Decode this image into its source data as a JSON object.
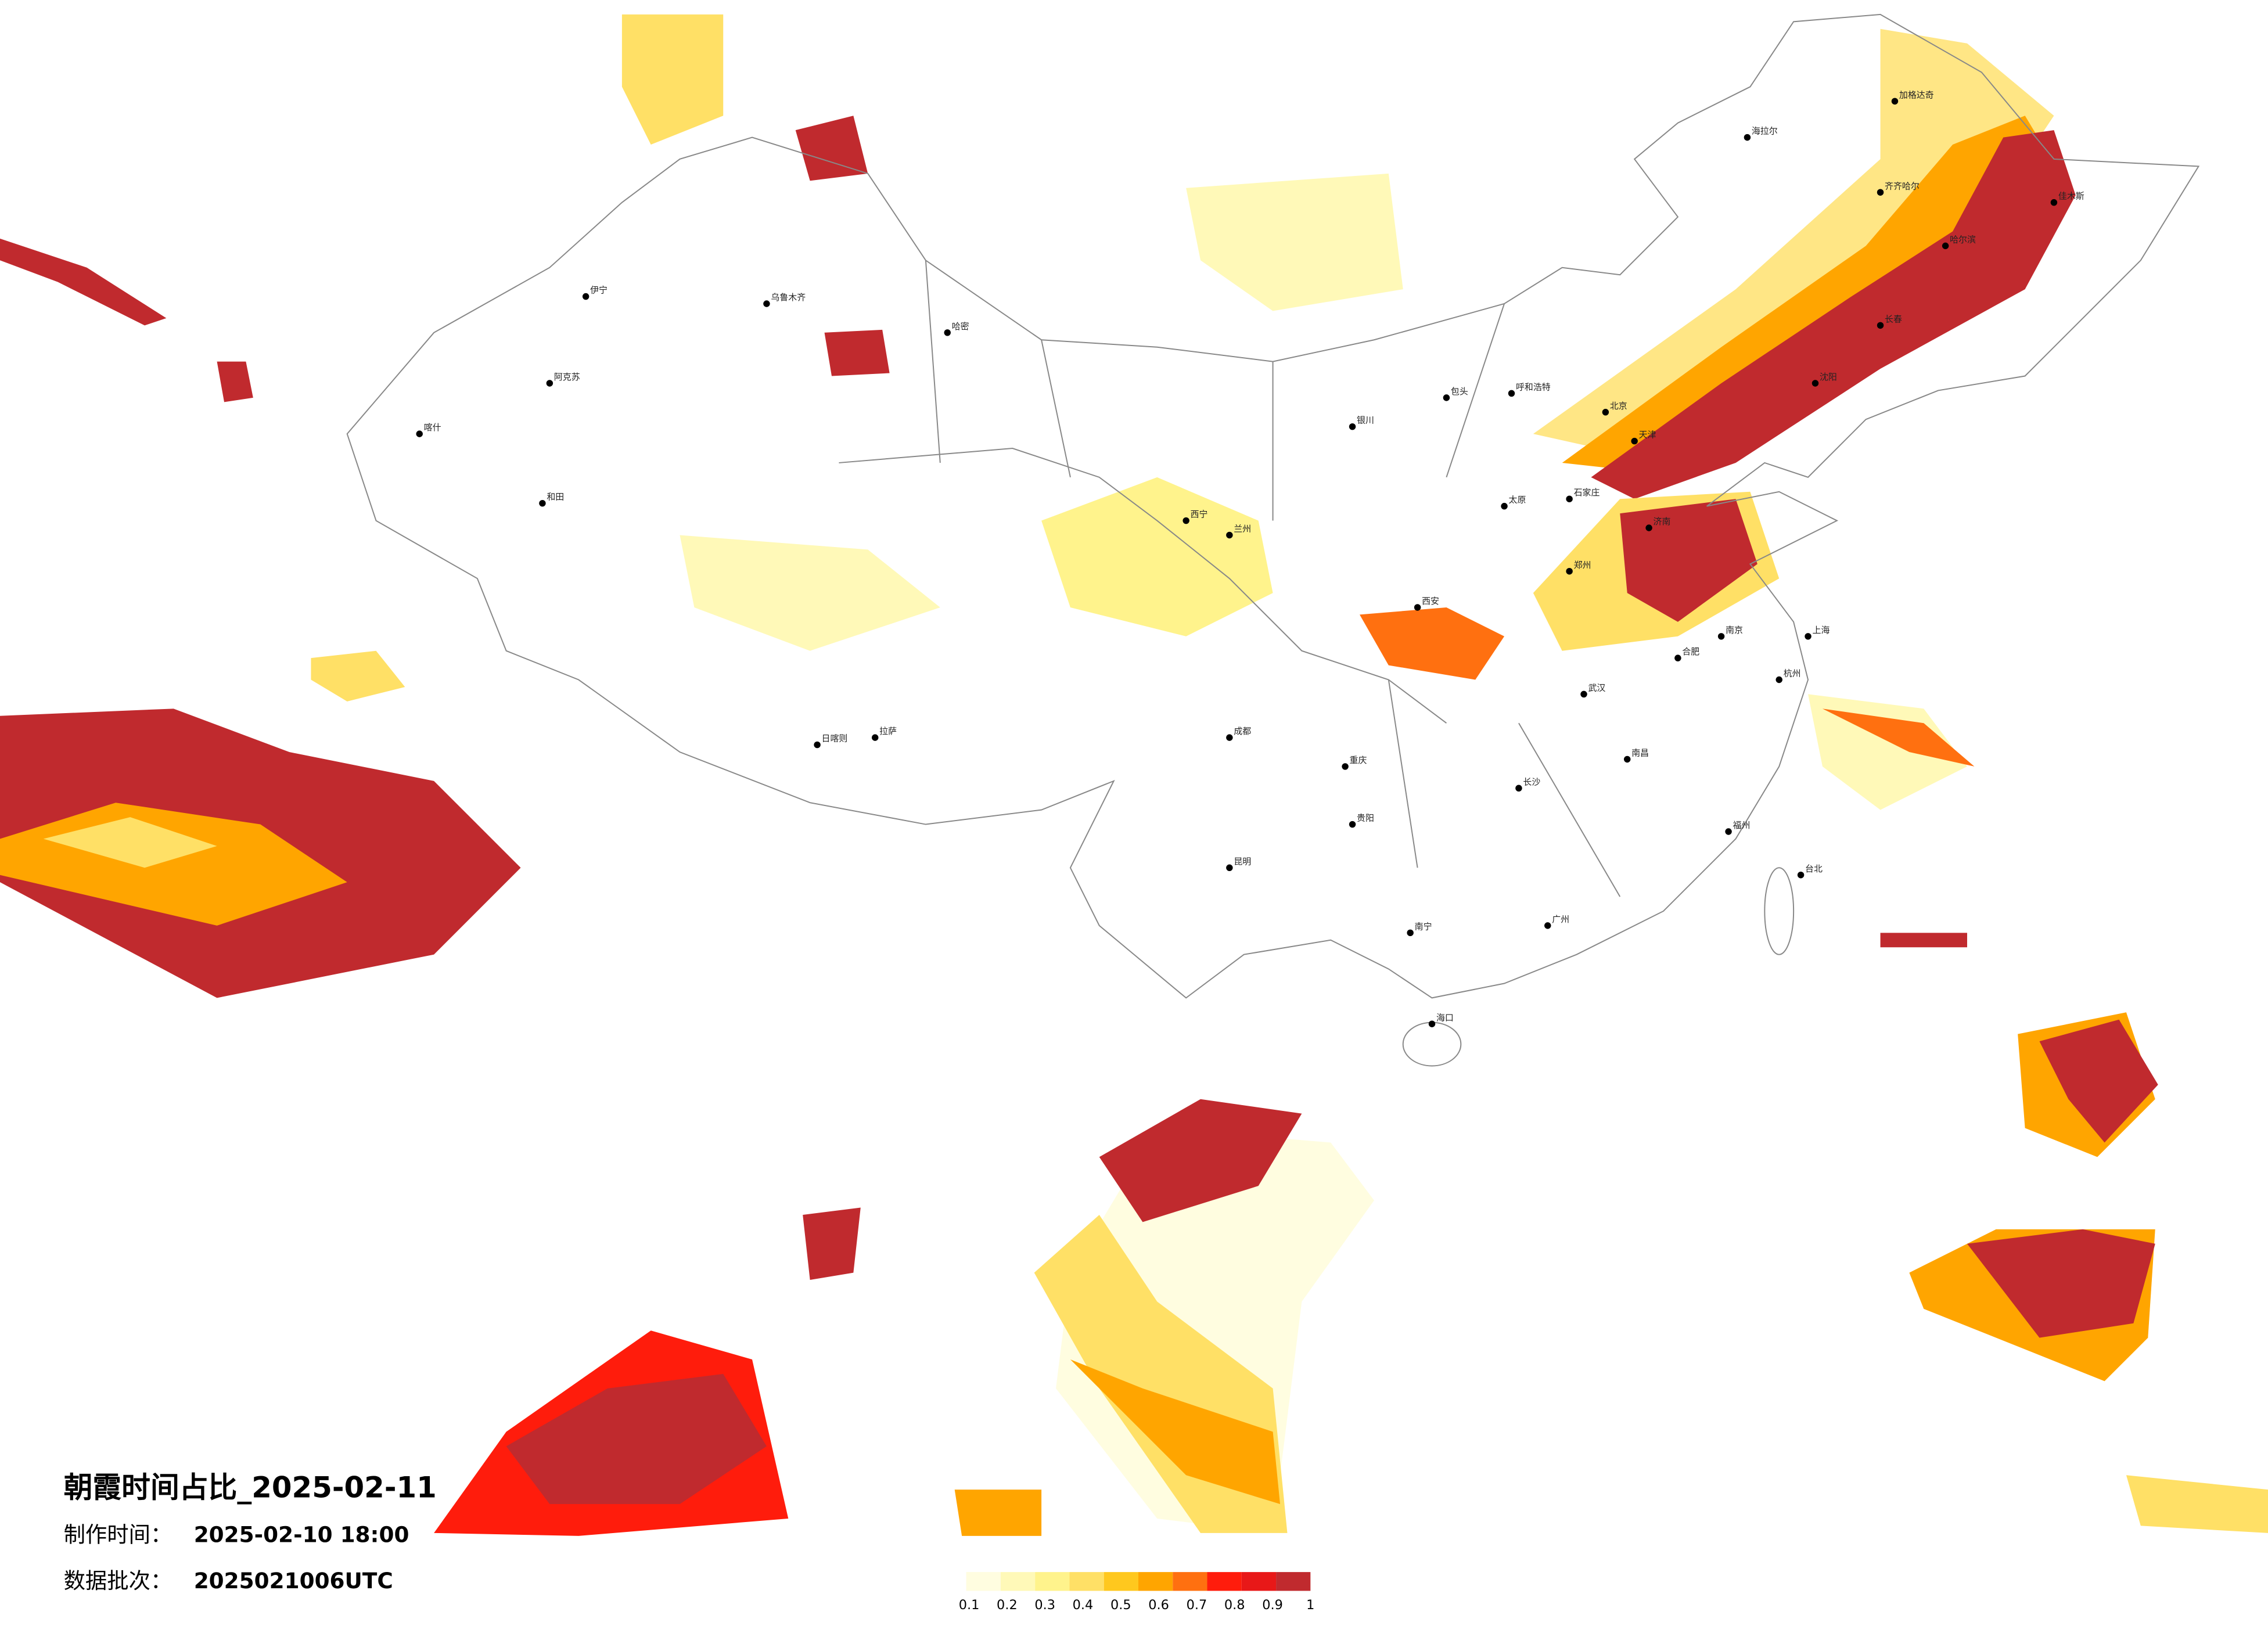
{
  "title": "朝霞时间占比_2025-02-11",
  "footer": {
    "made_label": "制作时间：",
    "made_time": "2025-02-10 18:00",
    "batch_label": "数据批次：",
    "batch": "2025021006UTC"
  },
  "legend": {
    "colors": [
      "#fffde0",
      "#fff9b8",
      "#fff38c",
      "#ffe066",
      "#ffc81e",
      "#ffa500",
      "#ff7010",
      "#ff1c0c",
      "#e81818",
      "#c02a2e"
    ],
    "ticks": [
      0.1,
      0.2,
      0.3,
      0.4,
      0.5,
      0.6,
      0.7,
      0.8,
      0.9,
      1
    ]
  },
  "cities": [
    "加格达奇",
    "海拉尔",
    "齐齐哈尔",
    "哈尔滨",
    "佳木斯",
    "长春",
    "沈阳",
    "北京",
    "天津",
    "呼和浩特",
    "包头",
    "银川",
    "兰州",
    "西宁",
    "乌鲁木齐",
    "伊宁",
    "喀什",
    "和田",
    "哈密",
    "阿克苏",
    "拉萨",
    "日喀则",
    "成都",
    "重庆",
    "贵阳",
    "昆明",
    "南宁",
    "广州",
    "长沙",
    "武汉",
    "南昌",
    "杭州",
    "上海",
    "南京",
    "福州",
    "台北",
    "海口",
    "西安",
    "郑州",
    "济南",
    "石家庄",
    "太原",
    "合肥"
  ]
}
